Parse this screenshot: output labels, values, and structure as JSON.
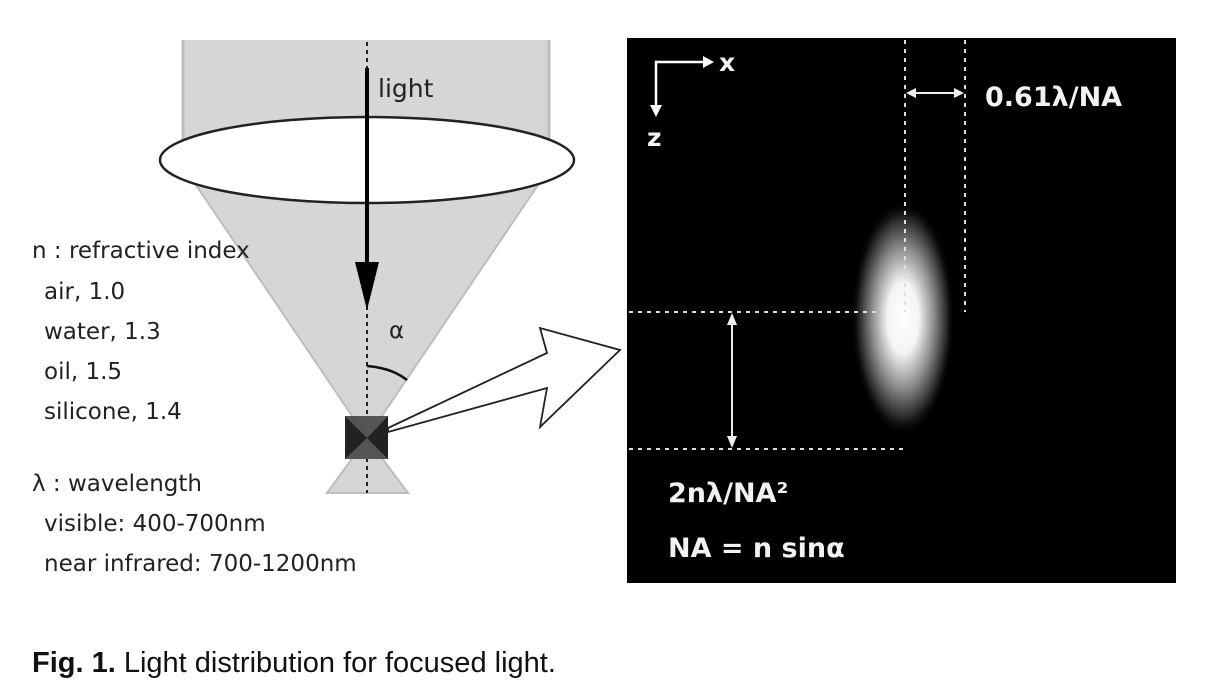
{
  "left_panel": {
    "light_label": "light",
    "alpha_label": "α",
    "refractive": {
      "heading": "n : refractive index",
      "items": [
        "air, 1.0",
        "water, 1.3",
        "oil, 1.5",
        "silicone, 1.4"
      ]
    },
    "wavelength": {
      "heading": "λ : wavelength",
      "items": [
        "visible: 400-700nm",
        "near infrared: 700-1200nm"
      ]
    }
  },
  "right_panel": {
    "axis_x": "x",
    "axis_z": "z",
    "lateral_label": "0.61λ/NA",
    "axial_label": "2nλ/NA²",
    "na_formula": "NA = n sinα"
  },
  "caption": {
    "label": "Fig. 1.",
    "text": " Light distribution for focused light."
  },
  "colors": {
    "beam": "#d6d6d6",
    "panel": "#000000"
  }
}
